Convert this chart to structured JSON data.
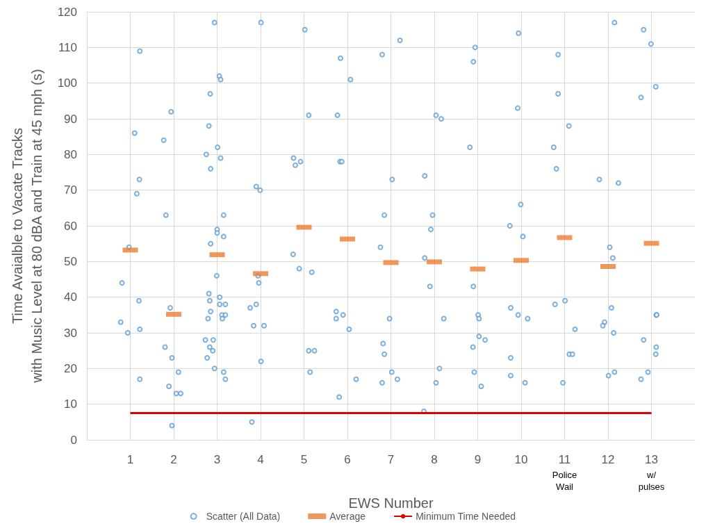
{
  "chart_data": {
    "type": "scatter",
    "xlabel": "EWS Number",
    "ylabel": "Time Avaialble to Vacate Tracks\nwith Music Level at 80 dBA and Train at 45 mph (s)",
    "xlim": [
      0,
      14
    ],
    "xticks": [
      {
        "value": 1,
        "label": "1"
      },
      {
        "value": 2,
        "label": "2"
      },
      {
        "value": 3,
        "label": "3"
      },
      {
        "value": 4,
        "label": "4"
      },
      {
        "value": 5,
        "label": "5"
      },
      {
        "value": 6,
        "label": "6"
      },
      {
        "value": 7,
        "label": "7"
      },
      {
        "value": 8,
        "label": "8"
      },
      {
        "value": 9,
        "label": "9"
      },
      {
        "value": 10,
        "label": "10"
      },
      {
        "value": 11,
        "label": "11\nPolice\nWail"
      },
      {
        "value": 12,
        "label": "12"
      },
      {
        "value": 13,
        "label": "13\nw/\npulses"
      }
    ],
    "ylim": [
      0,
      120
    ],
    "yticks": [
      0,
      10,
      20,
      30,
      40,
      50,
      60,
      70,
      80,
      90,
      100,
      110,
      120
    ],
    "grid": true,
    "legend": "bottom",
    "series": [
      {
        "name": "Scatter (All Data)",
        "marker": "circle",
        "color": "#5b9bd5",
        "x": [
          1.22,
          1.1,
          1.21,
          1.15,
          0.97,
          0.81,
          1.2,
          0.78,
          0.94,
          1.22,
          1.22,
          1.94,
          1.77,
          1.82,
          1.92,
          1.8,
          1.96,
          2.11,
          1.89,
          2.06,
          2.16,
          1.96,
          2.94,
          3.05,
          3.08,
          2.84,
          2.81,
          3.01,
          2.75,
          3.08,
          2.85,
          3.15,
          3.0,
          3.0,
          3.15,
          2.85,
          2.99,
          2.81,
          3.06,
          2.83,
          3.06,
          3.19,
          2.85,
          3.11,
          3.19,
          2.79,
          3.12,
          2.73,
          2.91,
          2.83,
          2.9,
          2.77,
          2.94,
          3.15,
          3.19,
          4.01,
          3.9,
          3.99,
          3.94,
          3.96,
          3.76,
          3.9,
          3.84,
          4.08,
          4.01,
          3.8,
          5.02,
          5.11,
          4.76,
          4.8,
          4.92,
          4.75,
          4.89,
          5.18,
          5.11,
          5.24,
          5.14,
          5.84,
          6.07,
          5.77,
          5.83,
          5.87,
          5.74,
          5.9,
          5.74,
          6.04,
          6.2,
          5.81,
          6.8,
          7.21,
          7.03,
          6.85,
          6.76,
          6.97,
          6.82,
          6.85,
          7.02,
          7.15,
          6.8,
          8.04,
          8.16,
          7.78,
          7.96,
          7.92,
          7.78,
          7.9,
          8.22,
          8.12,
          8.04,
          7.76,
          8.94,
          8.9,
          8.82,
          8.9,
          9.01,
          9.03,
          9.03,
          9.17,
          8.89,
          8.92,
          9.08,
          9.94,
          9.92,
          9.99,
          9.74,
          10.04,
          9.76,
          9.93,
          10.15,
          9.76,
          9.76,
          10.09,
          10.85,
          10.85,
          11.1,
          10.75,
          10.81,
          11.01,
          10.78,
          11.24,
          11.11,
          11.18,
          10.96,
          12.15,
          11.8,
          12.24,
          12.04,
          12.11,
          12.08,
          11.92,
          11.88,
          12.13,
          12.15,
          12.01,
          12.82,
          12.99,
          13.1,
          12.76,
          13.11,
          13.12,
          12.82,
          13.11,
          13.1,
          12.92,
          12.76
        ],
        "values": [
          109,
          86,
          73,
          69,
          54,
          44,
          39,
          33,
          30,
          31,
          17,
          92,
          84,
          63,
          37,
          26,
          23,
          19,
          15,
          13,
          13,
          4,
          117,
          102,
          101,
          97,
          88,
          82,
          80,
          79,
          76,
          63,
          59,
          58,
          57,
          55,
          46,
          41,
          40,
          39,
          38,
          38,
          36,
          35,
          35,
          34,
          34,
          28,
          28,
          26,
          25,
          23,
          20,
          19,
          17,
          117,
          71,
          70,
          46,
          44,
          37,
          38,
          32,
          32,
          22,
          5,
          115,
          91,
          79,
          77,
          78,
          52,
          48,
          47,
          25,
          25,
          19,
          107,
          101,
          91,
          78,
          78,
          36,
          35,
          34,
          31,
          17,
          12,
          108,
          112,
          73,
          63,
          54,
          34,
          27,
          24,
          19,
          17,
          16,
          91,
          90,
          74,
          63,
          59,
          51,
          43,
          34,
          20,
          16,
          8,
          110,
          106,
          82,
          43,
          35,
          34,
          29,
          28,
          26,
          19,
          15,
          114,
          93,
          66,
          60,
          57,
          37,
          35,
          34,
          23,
          18,
          16,
          108,
          97,
          88,
          82,
          76,
          39,
          38,
          31,
          24,
          24,
          16,
          117,
          73,
          72,
          54,
          51,
          37,
          33,
          32,
          30,
          19,
          18,
          115,
          111,
          99,
          96,
          35,
          35,
          28,
          26,
          24,
          19,
          17
        ]
      },
      {
        "name": "Average",
        "marker": "square",
        "color": "#ed7d31",
        "x": [
          1,
          2,
          3,
          4,
          5,
          6,
          7,
          8,
          9,
          10,
          11,
          12,
          13
        ],
        "values": [
          53.2,
          35.2,
          51.9,
          46.6,
          59.6,
          56.3,
          49.7,
          49.9,
          47.9,
          50.3,
          56.7,
          48.6,
          55.1
        ]
      },
      {
        "name": "Minimum Time Needed",
        "type": "line",
        "marker": "none",
        "color": "#e00000",
        "x": [
          1,
          13
        ],
        "values": [
          7.5,
          7.5
        ]
      }
    ]
  }
}
